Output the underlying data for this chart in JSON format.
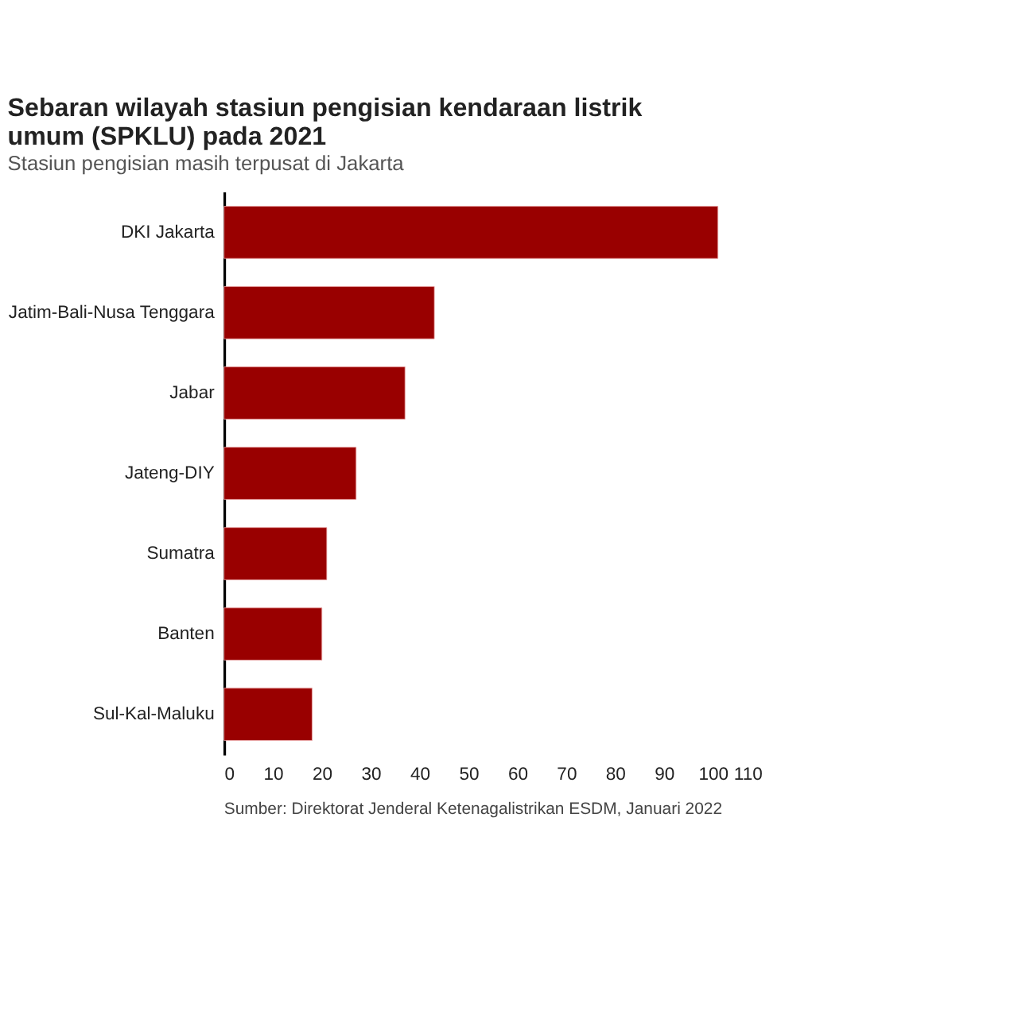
{
  "chart_data": {
    "type": "bar",
    "orientation": "horizontal",
    "title": "Sebaran wilayah stasiun pengisian kendaraan listrik umum (SPKLU) pada 2021",
    "subtitle": "Stasiun pengisian masih terpusat di Jakarta",
    "categories": [
      "DKI Jakarta",
      "Jatim-Bali-Nusa Tenggara",
      "Jabar",
      "Jateng-DIY",
      "Sumatra",
      "Banten",
      "Sul-Kal-Maluku"
    ],
    "values": [
      101,
      43,
      37,
      27,
      21,
      20,
      18
    ],
    "color": "#990000",
    "xlim": [
      0,
      110
    ],
    "xticks": [
      0,
      10,
      20,
      30,
      40,
      50,
      60,
      70,
      80,
      90,
      100,
      110
    ],
    "grid": false,
    "annotations": [
      "Sumber: Direktorat Jenderal Ketenagalistrikan ESDM, Januari 2022"
    ]
  }
}
